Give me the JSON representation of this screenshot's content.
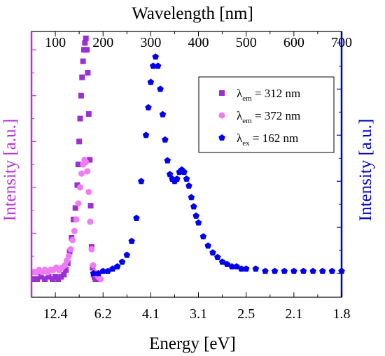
{
  "chart_data": {
    "type": "scatter",
    "title": "",
    "top_axis": {
      "label": "Wavelength [nm]",
      "tick_labels": [
        "100",
        "200",
        "300",
        "400",
        "500",
        "600",
        "700"
      ],
      "ticks_nm": [
        100,
        200,
        300,
        400,
        500,
        600,
        700
      ],
      "range_nm": [
        50,
        700
      ]
    },
    "bottom_axis": {
      "label": "Energy [eV]",
      "tick_labels": [
        "12.4",
        "6.2",
        "4.1",
        "3.1",
        "2.5",
        "2.1",
        "1.8"
      ],
      "ticks_nm": [
        100,
        200,
        300,
        400,
        500,
        600,
        700
      ]
    },
    "left_axis": {
      "label": "Intensity [a.u.]",
      "color": "#b535d6",
      "range": [
        0,
        1.08
      ]
    },
    "right_axis": {
      "label": "Intensity [a.u.]",
      "color": "#0000cc",
      "range": [
        0,
        1.05
      ]
    },
    "legend": {
      "placement": "top-right",
      "entries": [
        {
          "prefix": "λ",
          "sub": "em",
          "text": " = 312 nm",
          "color": "#9b2fd3",
          "marker": "square"
        },
        {
          "prefix": "λ",
          "sub": "em",
          "text": " = 372 nm",
          "color": "#f07cf3",
          "marker": "circle"
        },
        {
          "prefix": "λ",
          "sub": "ex",
          "text": "  = 162 nm",
          "color": "#0000ee",
          "marker": "pentagon"
        }
      ]
    },
    "series": [
      {
        "name": "λem = 312 nm",
        "axis": "left",
        "color": "#9b2fd3",
        "marker": "square",
        "x_nm": [
          55,
          62,
          70,
          78,
          86,
          94,
          100,
          106,
          112,
          118,
          122,
          126,
          130,
          134,
          138,
          142,
          146,
          148,
          150,
          152,
          154,
          156,
          158,
          160,
          162,
          164,
          166,
          168,
          170,
          172,
          174,
          176,
          178,
          180,
          182,
          184,
          188,
          192
        ],
        "y": [
          0.0,
          0.0,
          0.01,
          0.0,
          0.01,
          0.0,
          0.01,
          0.0,
          0.01,
          0.02,
          0.04,
          0.07,
          0.12,
          0.18,
          0.26,
          0.31,
          0.41,
          0.5,
          0.6,
          0.7,
          0.8,
          0.88,
          0.95,
          1.0,
          1.03,
          1.05,
          1.0,
          0.9,
          0.72,
          0.52,
          0.32,
          0.14,
          0.05,
          0.02,
          0.01,
          0.0,
          0.0,
          0.0
        ]
      },
      {
        "name": "λem = 372 nm",
        "axis": "left",
        "color": "#f07cf3",
        "marker": "circle",
        "x_nm": [
          55,
          60,
          66,
          72,
          78,
          84,
          90,
          96,
          102,
          108,
          114,
          120,
          124,
          128,
          132,
          136,
          140,
          144,
          148,
          152,
          155,
          158,
          161,
          164,
          167,
          170,
          173,
          176,
          179,
          182,
          185,
          190,
          195
        ],
        "y": [
          0.03,
          0.03,
          0.04,
          0.03,
          0.04,
          0.03,
          0.04,
          0.04,
          0.05,
          0.04,
          0.05,
          0.06,
          0.08,
          0.1,
          0.13,
          0.17,
          0.21,
          0.26,
          0.33,
          0.4,
          0.46,
          0.5,
          0.52,
          0.51,
          0.47,
          0.38,
          0.25,
          0.13,
          0.06,
          0.03,
          0.02,
          0.01,
          0.0
        ]
      },
      {
        "name": "λex = 162 nm",
        "axis": "right",
        "color": "#0000ee",
        "marker": "pentagon",
        "x_nm": [
          180,
          190,
          200,
          210,
          220,
          230,
          240,
          250,
          260,
          270,
          280,
          290,
          295,
          300,
          305,
          310,
          315,
          320,
          325,
          330,
          335,
          340,
          345,
          350,
          355,
          360,
          365,
          370,
          375,
          380,
          385,
          390,
          395,
          400,
          410,
          420,
          430,
          440,
          450,
          460,
          470,
          480,
          490,
          500,
          520,
          540,
          560,
          580,
          600,
          620,
          640,
          660,
          680,
          700
        ],
        "y": [
          0.0,
          0.0,
          0.01,
          0.01,
          0.02,
          0.03,
          0.05,
          0.08,
          0.14,
          0.24,
          0.4,
          0.6,
          0.72,
          0.83,
          0.9,
          0.94,
          0.9,
          0.8,
          0.69,
          0.58,
          0.49,
          0.43,
          0.41,
          0.4,
          0.41,
          0.44,
          0.45,
          0.44,
          0.41,
          0.38,
          0.33,
          0.29,
          0.25,
          0.22,
          0.16,
          0.12,
          0.09,
          0.07,
          0.05,
          0.04,
          0.03,
          0.03,
          0.02,
          0.02,
          0.02,
          0.01,
          0.01,
          0.01,
          0.01,
          0.01,
          0.01,
          0.01,
          0.01,
          0.01
        ]
      }
    ]
  }
}
